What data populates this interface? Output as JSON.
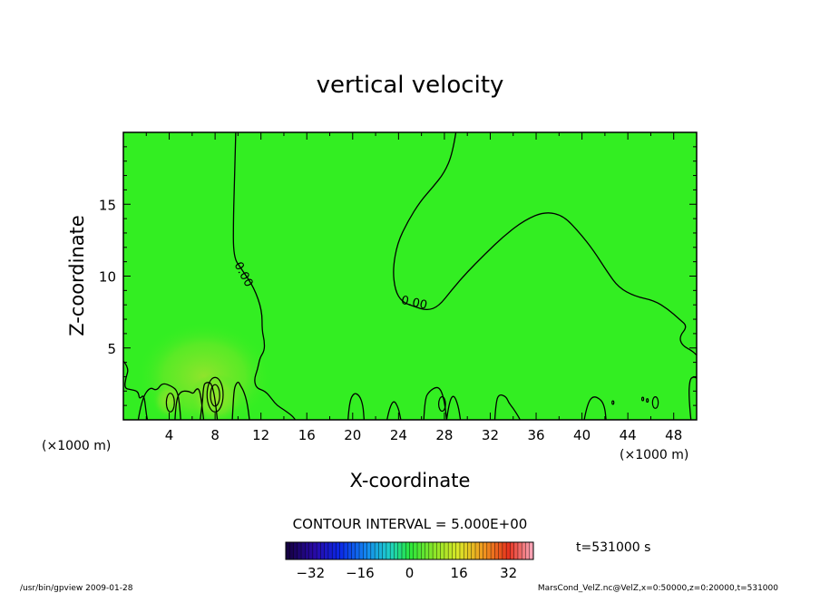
{
  "chart_data": {
    "type": "heatmap",
    "title": "vertical velocity",
    "xlabel": "X-coordinate",
    "ylabel": "Z-coordinate",
    "x_unit_label": "(×1000 m)",
    "y_unit_label": "(×1000 m)",
    "xlim": [
      0,
      50
    ],
    "ylim": [
      0,
      20
    ],
    "x_ticks": [
      4,
      8,
      12,
      16,
      20,
      24,
      28,
      32,
      36,
      40,
      44,
      48
    ],
    "y_ticks": [
      5,
      10,
      15
    ],
    "contour_interval_text": "CONTOUR INTERVAL = 5.000E+00",
    "contour_labels": [
      {
        "text": "0.00",
        "x": 10.2,
        "z": 10.0
      },
      {
        "text": "0.00",
        "x": 25.3,
        "z": 7.9
      }
    ],
    "contours": [
      {
        "value": 0,
        "points": [
          [
            9.8,
            20
          ],
          [
            9.7,
            17
          ],
          [
            9.6,
            14
          ],
          [
            9.6,
            11.3
          ],
          [
            10.3,
            10.5
          ],
          [
            11.4,
            9.2
          ],
          [
            12.1,
            7.6
          ],
          [
            12.1,
            6.2
          ],
          [
            12.3,
            5.5
          ],
          [
            12.3,
            4.8
          ],
          [
            11.9,
            4.3
          ],
          [
            11.7,
            3.5
          ],
          [
            11.4,
            2.8
          ],
          [
            11.6,
            2.2
          ],
          [
            12.4,
            2.0
          ],
          [
            13.0,
            1.4
          ],
          [
            13.4,
            1.0
          ],
          [
            14.0,
            0.7
          ],
          [
            14.7,
            0.3
          ],
          [
            15.0,
            0
          ]
        ]
      },
      {
        "value": 0,
        "points": [
          [
            29.0,
            20
          ],
          [
            28.7,
            18.5
          ],
          [
            28.0,
            17.2
          ],
          [
            27.0,
            16.2
          ],
          [
            25.9,
            15.2
          ],
          [
            24.8,
            13.8
          ],
          [
            23.9,
            12.3
          ],
          [
            23.5,
            10.5
          ],
          [
            23.7,
            9.0
          ],
          [
            24.3,
            8.2
          ],
          [
            25.3,
            7.9
          ],
          [
            26.5,
            7.6
          ],
          [
            27.5,
            7.9
          ],
          [
            28.6,
            9.0
          ],
          [
            29.9,
            10.2
          ],
          [
            31.5,
            11.5
          ],
          [
            33.2,
            12.8
          ],
          [
            35.0,
            13.9
          ],
          [
            36.8,
            14.5
          ],
          [
            38.4,
            14.2
          ],
          [
            39.8,
            13.0
          ],
          [
            41.0,
            11.8
          ],
          [
            42.2,
            10.3
          ],
          [
            43.2,
            9.2
          ],
          [
            44.6,
            8.6
          ],
          [
            46.3,
            8.3
          ],
          [
            47.5,
            7.7
          ],
          [
            48.5,
            7.0
          ],
          [
            49.2,
            6.5
          ],
          [
            48.5,
            5.8
          ],
          [
            48.7,
            5.2
          ],
          [
            49.6,
            4.8
          ],
          [
            50,
            4.5
          ]
        ]
      },
      {
        "value": 0,
        "points": [
          [
            0,
            4.1
          ],
          [
            0.5,
            3.6
          ],
          [
            0.2,
            2.9
          ],
          [
            0.1,
            2.2
          ],
          [
            0.6,
            2.1
          ],
          [
            1.3,
            2.0
          ],
          [
            1.4,
            1.4
          ],
          [
            1.8,
            1.8
          ],
          [
            2.0,
            0.4
          ],
          [
            2.1,
            0
          ]
        ]
      },
      {
        "value": 0,
        "points": [
          [
            1.3,
            0
          ],
          [
            1.6,
            1.4
          ],
          [
            2.3,
            2.3
          ],
          [
            2.9,
            2.0
          ],
          [
            3.4,
            2.6
          ],
          [
            4.3,
            2.3
          ],
          [
            4.7,
            2.0
          ],
          [
            4.9,
            1.1
          ],
          [
            5.0,
            0
          ]
        ]
      },
      {
        "value": 0,
        "points": [
          [
            4.5,
            0
          ],
          [
            4.6,
            1.4
          ],
          [
            5.0,
            2.0
          ],
          [
            5.7,
            2.0
          ],
          [
            6.1,
            1.8
          ],
          [
            6.3,
            2.1
          ],
          [
            6.6,
            2.2
          ],
          [
            6.8,
            1.4
          ],
          [
            7.0,
            0
          ]
        ]
      },
      {
        "value": 0,
        "points": [
          [
            6.7,
            0
          ],
          [
            6.9,
            1.2
          ],
          [
            7.0,
            2.4
          ],
          [
            7.2,
            2.6
          ],
          [
            7.6,
            2.6
          ],
          [
            7.8,
            2.2
          ],
          [
            8.0,
            1.4
          ],
          [
            8.2,
            0
          ]
        ]
      },
      {
        "value": 0,
        "points": [
          [
            9.5,
            0
          ],
          [
            9.6,
            1.5
          ],
          [
            9.7,
            2.3
          ],
          [
            10.0,
            2.7
          ],
          [
            10.2,
            2.4
          ],
          [
            10.5,
            2.0
          ],
          [
            10.8,
            1.2
          ],
          [
            11.0,
            0
          ]
        ]
      },
      {
        "value": 0,
        "points": [
          [
            19.6,
            0
          ],
          [
            19.7,
            1.2
          ],
          [
            20.1,
            1.9
          ],
          [
            20.6,
            1.7
          ],
          [
            20.9,
            1.0
          ],
          [
            21.0,
            0
          ]
        ]
      },
      {
        "value": 0,
        "points": [
          [
            23.0,
            0
          ],
          [
            23.2,
            0.8
          ],
          [
            23.6,
            1.4
          ],
          [
            24.0,
            0.8
          ],
          [
            24.2,
            0
          ]
        ]
      },
      {
        "value": 0,
        "points": [
          [
            26.2,
            0
          ],
          [
            26.3,
            1.5
          ],
          [
            26.7,
            2.0
          ],
          [
            27.3,
            2.3
          ],
          [
            27.7,
            2.1
          ],
          [
            28.0,
            1.3
          ],
          [
            28.2,
            0
          ]
        ]
      },
      {
        "value": 0,
        "points": [
          [
            28.2,
            0
          ],
          [
            28.4,
            1.2
          ],
          [
            28.8,
            1.8
          ],
          [
            29.2,
            1.0
          ],
          [
            29.4,
            0
          ]
        ]
      },
      {
        "value": 0,
        "points": [
          [
            32.4,
            0
          ],
          [
            32.5,
            1.3
          ],
          [
            32.8,
            1.8
          ],
          [
            33.4,
            1.6
          ],
          [
            33.6,
            1.2
          ],
          [
            34.0,
            0.8
          ],
          [
            34.4,
            0.3
          ],
          [
            34.6,
            0
          ]
        ]
      },
      {
        "value": 0,
        "points": [
          [
            40.2,
            0
          ],
          [
            40.4,
            0.9
          ],
          [
            40.9,
            1.7
          ],
          [
            41.7,
            1.4
          ],
          [
            42.0,
            0.8
          ],
          [
            42.1,
            0
          ]
        ]
      },
      {
        "value": 0,
        "points": [
          [
            49.5,
            0
          ],
          [
            49.3,
            1.6
          ],
          [
            49.4,
            2.8
          ],
          [
            49.7,
            3.0
          ],
          [
            50,
            2.9
          ]
        ]
      }
    ],
    "closed_contours": [
      {
        "value": 5,
        "cx": 4.1,
        "cz": 1.2,
        "rx": 0.35,
        "rz": 0.65
      },
      {
        "value": 5,
        "cx": 8.0,
        "cz": 1.75,
        "rx": 0.7,
        "rz": 1.2
      },
      {
        "value": 5,
        "cx": 8.0,
        "cz": 1.7,
        "rx": 0.4,
        "rz": 0.75
      },
      {
        "value": 0,
        "cx": 27.8,
        "cz": 1.1,
        "rx": 0.3,
        "rz": 0.5
      },
      {
        "value": 0,
        "cx": 46.4,
        "cz": 1.2,
        "rx": 0.25,
        "rz": 0.4
      },
      {
        "value": 0,
        "cx": 45.7,
        "cz": 1.35,
        "rx": 0.08,
        "rz": 0.12
      },
      {
        "value": 0,
        "cx": 45.3,
        "cz": 1.45,
        "rx": 0.08,
        "rz": 0.12
      },
      {
        "value": 0,
        "cx": 42.7,
        "cz": 1.2,
        "rx": 0.08,
        "rz": 0.12
      }
    ],
    "colorbar": {
      "min": -40,
      "max": 40,
      "ticks": [
        -32,
        -16,
        0,
        16,
        32
      ],
      "time_text": "t=531000 s"
    },
    "colors": {
      "field_background": "#33ee22",
      "updraft_tint": "#88e62a",
      "contour_line": "#000000"
    }
  },
  "footer": {
    "left": "/usr/bin/gpview   2009-01-28",
    "right": "MarsCond_VelZ.nc@VelZ,x=0:50000,z=0:20000,t=531000"
  }
}
